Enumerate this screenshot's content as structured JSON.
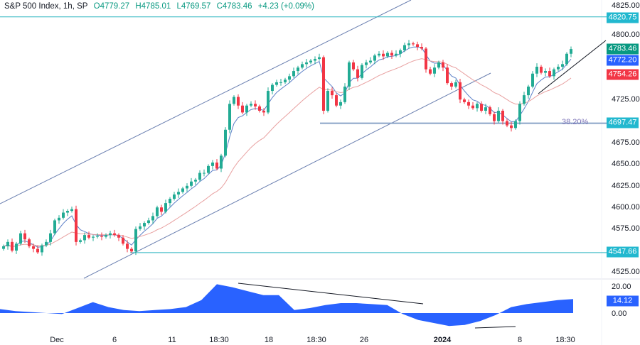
{
  "header": {
    "symbol": "S&P 500 Index, 1h, SP",
    "open": "O4779.27",
    "high": "H4785.01",
    "low": "L4769.57",
    "close": "C4783.46",
    "change": "+4.23 (+0.09%)"
  },
  "price_axis": {
    "ticks": [
      "4825.00",
      "4800.00",
      "4725.00",
      "4675.00",
      "4650.00",
      "4625.00",
      "4600.00",
      "4575.00",
      "4525.00"
    ]
  },
  "price_tags": {
    "resistance": "4820.75",
    "last": "4783.46",
    "fast_ma": "4772.20",
    "slow_ma": "4754.26",
    "fib_level": "4697.47",
    "support": "4547.66"
  },
  "fib_label": "38.20%",
  "oscillator": {
    "ticks": [
      "20.00",
      "0.00"
    ],
    "value": "14.12",
    "values": [
      4,
      2,
      1,
      0,
      -1,
      5,
      11,
      6,
      3,
      2,
      3,
      4,
      6,
      13,
      29,
      26,
      22,
      18,
      18,
      3,
      5,
      8,
      10,
      10,
      9,
      8,
      -1,
      -7,
      -10,
      -13,
      -12,
      -8,
      -2,
      6,
      9,
      11,
      13,
      14.12
    ]
  },
  "time_axis": [
    "Dec",
    "6",
    "11",
    "18:30",
    "18",
    "18:30",
    "26",
    "2024",
    "8",
    "18:30"
  ],
  "colors": {
    "up": "#22ab94",
    "down": "#f23645",
    "fast_ma": "#5b7fc7",
    "slow_ma": "#e8a0a0",
    "level_line": "#2bb5c0",
    "channel": "#6a7fb0",
    "oscillator_fill": "#2962ff",
    "last_tag": "#089981",
    "fast_tag": "#2962ff",
    "slow_tag": "#f23645",
    "level_tag": "#22b8cf"
  },
  "chart_data": {
    "type": "candlestick",
    "title": "S&P 500 Index, 1h, SP",
    "ylim": [
      4515,
      4835
    ],
    "closes": [
      4555,
      4560,
      4550,
      4558,
      4570,
      4563,
      4555,
      4552,
      4548,
      4556,
      4560,
      4570,
      4585,
      4588,
      4594,
      4596,
      4598,
      4560,
      4562,
      4568,
      4565,
      4566,
      4567,
      4566,
      4568,
      4570,
      4568,
      4565,
      4558,
      4552,
      4549,
      4575,
      4578,
      4582,
      4585,
      4590,
      4600,
      4595,
      4605,
      4610,
      4615,
      4618,
      4622,
      4625,
      4630,
      4632,
      4640,
      4640,
      4648,
      4652,
      4645,
      4660,
      4690,
      4720,
      4728,
      4718,
      4710,
      4718,
      4720,
      4717,
      4712,
      4710,
      4735,
      4742,
      4745,
      4745,
      4748,
      4752,
      4758,
      4762,
      4766,
      4768,
      4770,
      4772,
      4774,
      4712,
      4735,
      4730,
      4718,
      4722,
      4740,
      4768,
      4760,
      4750,
      4765,
      4768,
      4770,
      4776,
      4778,
      4775,
      4779,
      4776,
      4778,
      4782,
      4788,
      4790,
      4789,
      4786,
      4784,
      4760,
      4755,
      4762,
      4768,
      4762,
      4744,
      4740,
      4745,
      4725,
      4722,
      4718,
      4715,
      4720,
      4712,
      4716,
      4708,
      4700,
      4712,
      4700,
      4695,
      4692,
      4700,
      4720,
      4730,
      4740,
      4755,
      4763,
      4756,
      4758,
      4752,
      4760,
      4763,
      4766,
      4778,
      4783.46
    ],
    "levels": [
      4820.75,
      4697.47,
      4547.66
    ],
    "grid": false
  }
}
